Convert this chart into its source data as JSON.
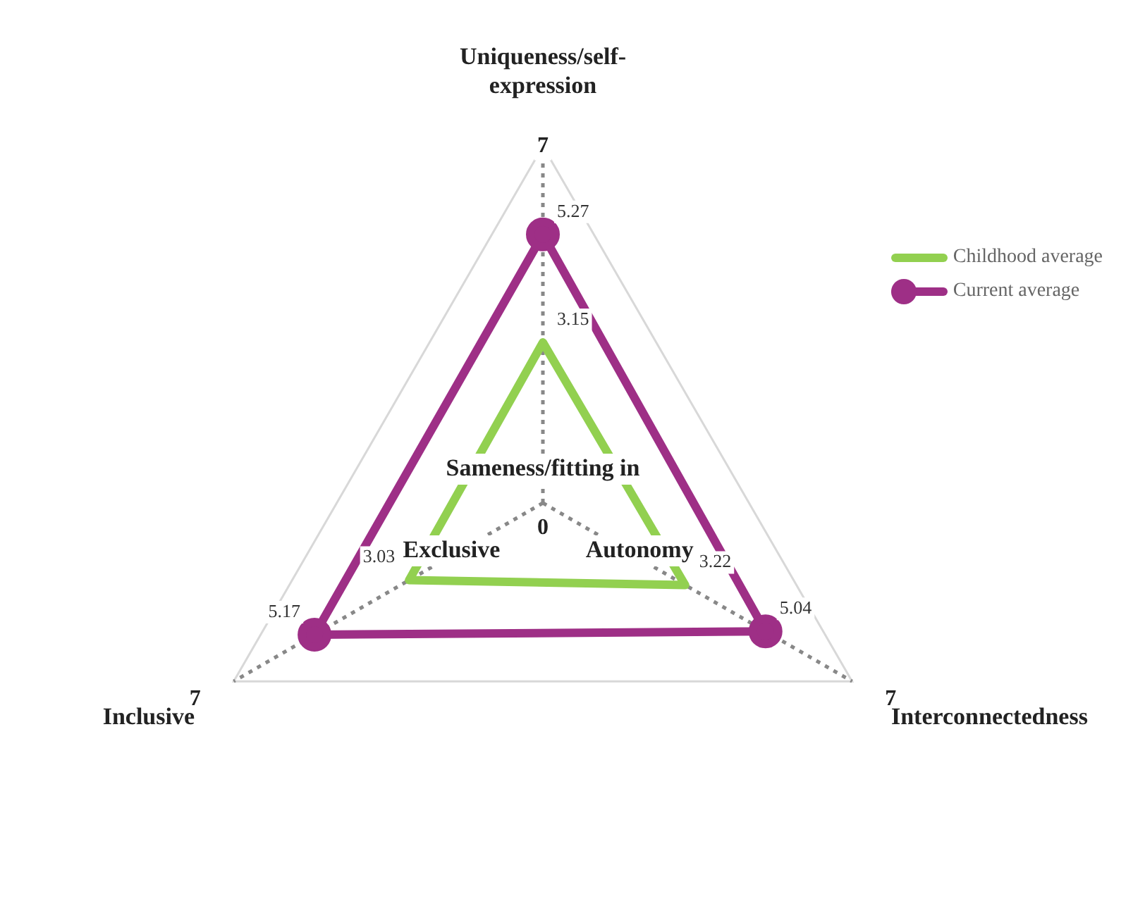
{
  "chart_data": {
    "type": "radar",
    "categories": [
      "Uniqueness/self-expression",
      "Interconnectedness",
      "Inclusive"
    ],
    "series": [
      {
        "name": "Childhood average",
        "color": "#92d050",
        "values": [
          3.15,
          3.22,
          3.03
        ],
        "marker": "none"
      },
      {
        "name": "Current average",
        "color": "#9e2f86",
        "values": [
          5.27,
          5.04,
          5.17
        ],
        "marker": "circle"
      }
    ],
    "ylim": [
      0,
      7
    ],
    "yticks": [
      0,
      7
    ],
    "annotations": [
      "Sameness/fitting in",
      "Autonomy",
      "Exclusive",
      "7",
      "7"
    ],
    "data_labels": true,
    "grid": true,
    "legend": "top right"
  }
}
